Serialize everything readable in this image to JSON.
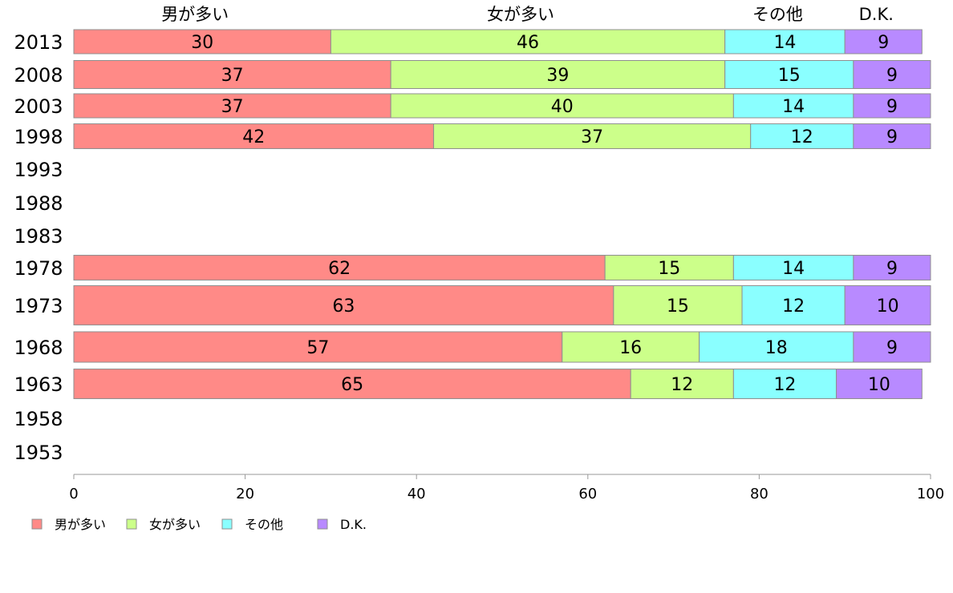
{
  "chart_data": {
    "type": "bar",
    "orientation": "horizontal",
    "stacked": true,
    "categories": [
      "2013",
      "2008",
      "2003",
      "1998",
      "1993",
      "1988",
      "1983",
      "1978",
      "1973",
      "1968",
      "1963",
      "1958",
      "1953"
    ],
    "series": [
      {
        "name": "男が多い",
        "color": "#ff8a87",
        "values": [
          30,
          37,
          37,
          42,
          null,
          null,
          null,
          62,
          63,
          57,
          65,
          null,
          null
        ]
      },
      {
        "name": "女が多い",
        "color": "#ccff8a",
        "values": [
          46,
          39,
          40,
          37,
          null,
          null,
          null,
          15,
          15,
          16,
          12,
          null,
          null
        ]
      },
      {
        "name": "その他",
        "color": "#8affff",
        "values": [
          14,
          15,
          14,
          12,
          null,
          null,
          null,
          14,
          12,
          18,
          12,
          null,
          null
        ]
      },
      {
        "name": "D.K.",
        "color": "#b88aff",
        "values": [
          9,
          9,
          9,
          9,
          null,
          null,
          null,
          9,
          10,
          9,
          10,
          null,
          null
        ]
      }
    ],
    "xlim": [
      0,
      100
    ],
    "x_ticks": [
      "0",
      "20",
      "40",
      "60",
      "80",
      "100"
    ],
    "legend_position": "bottom-left",
    "grid": false
  }
}
